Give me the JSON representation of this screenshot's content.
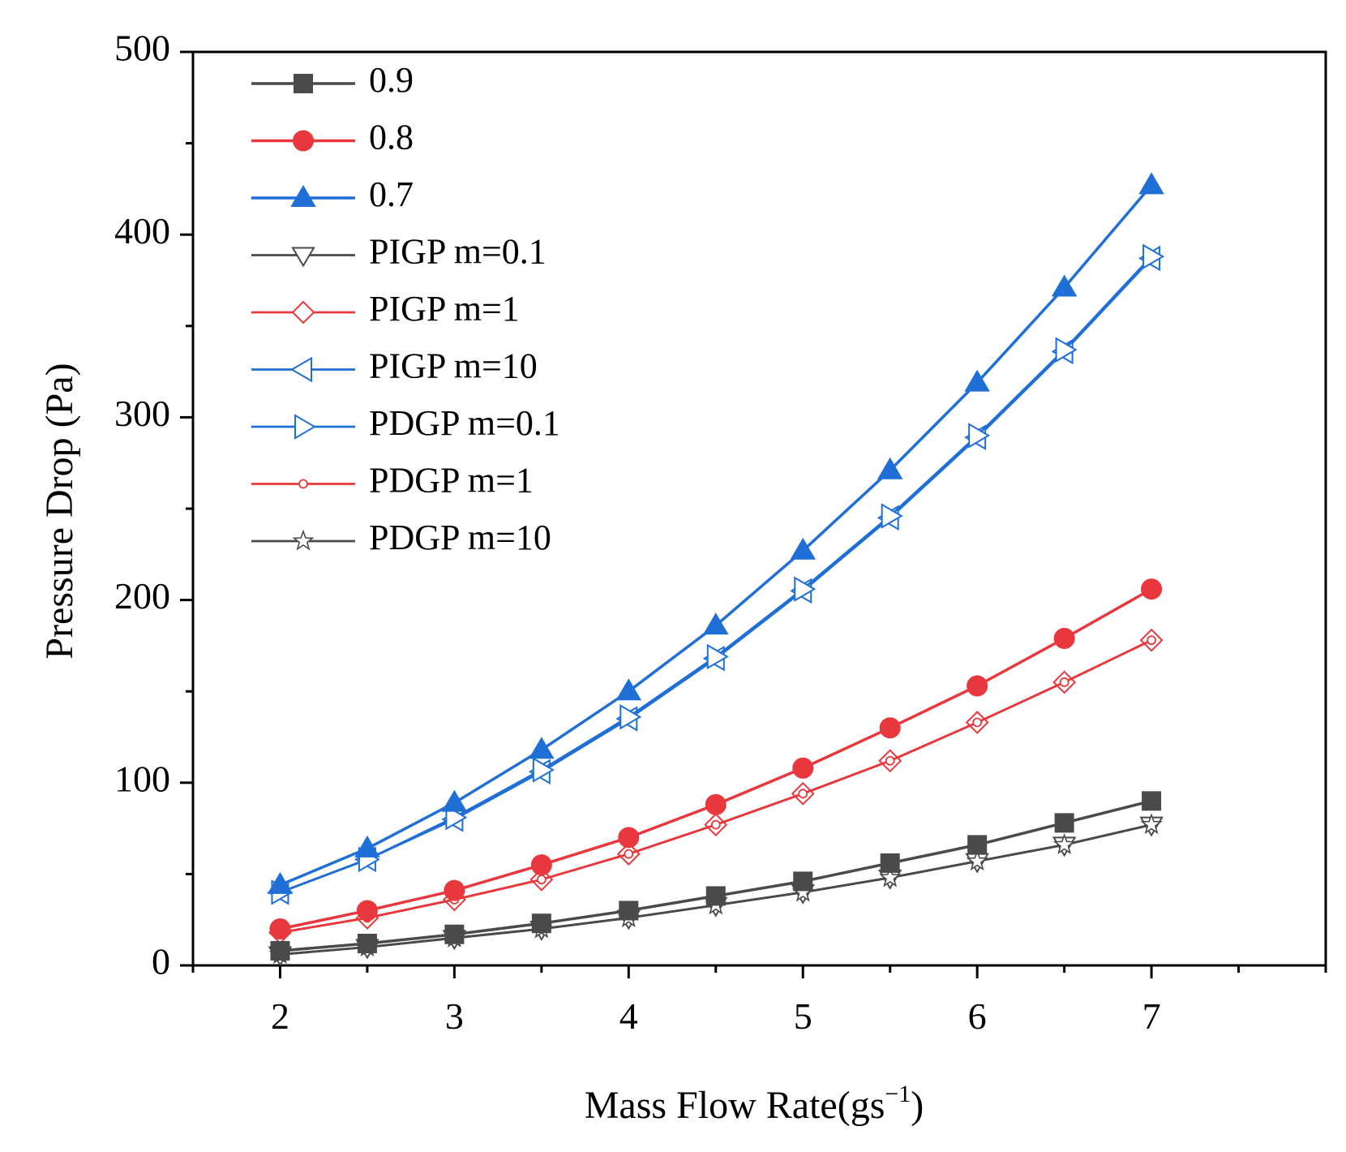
{
  "chart_data": {
    "type": "line",
    "title": "",
    "xlabel": "Mass Flow Rate(gs",
    "xlabel_sup": "−1",
    "xlabel_close": ")",
    "ylabel": "Pressure Drop (Pa)",
    "xlim": [
      1.5,
      8.0
    ],
    "ylim": [
      0,
      500
    ],
    "xticks": [
      2,
      3,
      4,
      5,
      6,
      7
    ],
    "yticks": [
      0,
      100,
      200,
      300,
      400,
      500
    ],
    "x": [
      2,
      2.5,
      3,
      3.5,
      4,
      4.5,
      5,
      5.5,
      6,
      6.5,
      7
    ],
    "legend_position": "top-left",
    "series": [
      {
        "name": "0.9",
        "color": "#4a4a4a",
        "marker": "square",
        "filled": true,
        "lineWidth": 2.5,
        "values": [
          8,
          12,
          17,
          23,
          30,
          38,
          46,
          56,
          66,
          78,
          90
        ]
      },
      {
        "name": "0.8",
        "color": "#e8383d",
        "marker": "circle",
        "filled": true,
        "lineWidth": 2.5,
        "values": [
          20,
          30,
          41,
          55,
          70,
          88,
          108,
          130,
          153,
          179,
          206
        ]
      },
      {
        "name": "0.7",
        "color": "#1f6fd6",
        "marker": "triangle-up",
        "filled": true,
        "lineWidth": 2.5,
        "values": [
          44,
          64,
          89,
          118,
          150,
          186,
          227,
          271,
          319,
          371,
          427
        ]
      },
      {
        "name": "PIGP m=0.1",
        "color": "#4a4a4a",
        "marker": "triangle-down",
        "filled": false,
        "lineWidth": 1.8,
        "values": [
          6,
          10,
          15,
          20,
          26,
          33,
          40,
          48,
          57,
          66,
          77
        ]
      },
      {
        "name": "PIGP m=1",
        "color": "#e8383d",
        "marker": "diamond",
        "filled": false,
        "lineWidth": 1.8,
        "values": [
          18,
          26,
          36,
          47,
          61,
          77,
          94,
          112,
          133,
          155,
          178
        ]
      },
      {
        "name": "PIGP m=10",
        "color": "#1f6fd6",
        "marker": "triangle-left",
        "filled": false,
        "lineWidth": 1.8,
        "values": [
          40,
          58,
          80,
          106,
          135,
          168,
          205,
          245,
          289,
          336,
          387
        ]
      },
      {
        "name": "PDGP m=0.1",
        "color": "#1f6fd6",
        "marker": "triangle-right",
        "filled": false,
        "lineWidth": 1.8,
        "values": [
          40,
          58,
          81,
          107,
          136,
          169,
          206,
          246,
          290,
          337,
          388
        ]
      },
      {
        "name": "PDGP m=1",
        "color": "#e8383d",
        "marker": "circle-small",
        "filled": false,
        "lineWidth": 1.8,
        "values": [
          18,
          26,
          36,
          47,
          61,
          77,
          94,
          112,
          133,
          155,
          178
        ]
      },
      {
        "name": "PDGP m=10",
        "color": "#4a4a4a",
        "marker": "star",
        "filled": false,
        "lineWidth": 1.8,
        "values": [
          6,
          10,
          15,
          20,
          26,
          33,
          40,
          48,
          57,
          66,
          77
        ]
      }
    ]
  }
}
